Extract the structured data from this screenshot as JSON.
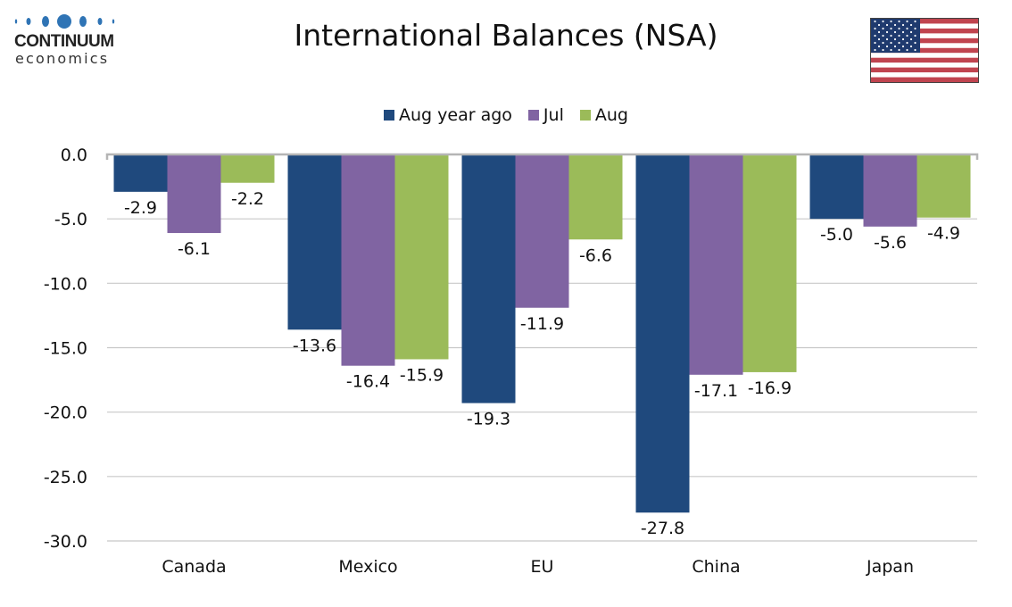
{
  "brand": {
    "logo_line1": "CONTINUUM",
    "logo_line2": "economics",
    "logo_color": "#2f74b5"
  },
  "flag": {
    "icon": "us-flag-icon"
  },
  "chart_data": {
    "type": "bar",
    "title": "International Balances (NSA)",
    "xlabel": "",
    "ylabel": "",
    "categories": [
      "Canada",
      "Mexico",
      "EU",
      "China",
      "Japan"
    ],
    "series": [
      {
        "name": "Aug year ago",
        "color": "#1f497d",
        "values": [
          -2.9,
          -13.6,
          -19.3,
          -27.8,
          -5.0
        ]
      },
      {
        "name": "Jul",
        "color": "#8064a2",
        "values": [
          -6.1,
          -16.4,
          -11.9,
          -17.1,
          -5.6
        ]
      },
      {
        "name": "Aug",
        "color": "#9bbb59",
        "values": [
          -2.2,
          -15.9,
          -6.6,
          -16.9,
          -4.9
        ]
      }
    ],
    "ylim": [
      -30,
      0
    ],
    "yticks": [
      "0.0",
      "-5.0",
      "-10.0",
      "-15.0",
      "-20.0",
      "-25.0",
      "-30.0"
    ],
    "ytick_values": [
      0,
      -5,
      -10,
      -15,
      -20,
      -25,
      -30
    ],
    "grid": true,
    "legend_position": "top-center"
  }
}
